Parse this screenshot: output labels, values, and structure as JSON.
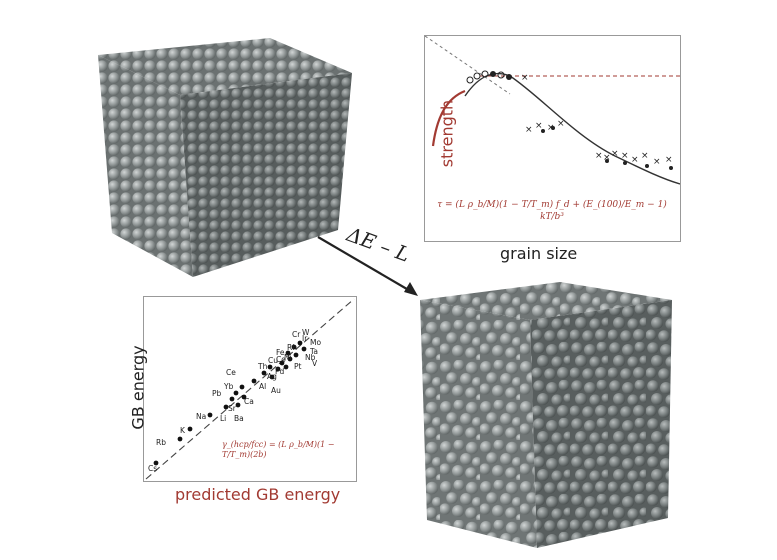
{
  "arrow_label": "ΔE – L",
  "strength_panel": {
    "ylabel": "strength",
    "xlabel": "grain size",
    "equation": "τ = (L ρ_b/M)(1 − T/T_m) f_d + (E_(100)/E_m − 1) kT/b³"
  },
  "gb_panel": {
    "ylabel": "GB energy",
    "xlabel": "predicted GB energy",
    "equation": "γ_(hcp/fcc) = (L ρ_b/M)(1 − T/T_m)(2b)",
    "element_labels": [
      "W",
      "Cr",
      "Ir",
      "Mo",
      "Ta",
      "Nb",
      "V",
      "Fe",
      "Rh",
      "Ni",
      "Co",
      "Pt",
      "Cu",
      "Pd",
      "Ag",
      "Th",
      "Al",
      "Au",
      "Ce",
      "Yb",
      "Pb",
      "Ca",
      "Sr",
      "Ba",
      "Li",
      "Na",
      "K",
      "Rb",
      "Cs"
    ]
  },
  "colors": {
    "accent": "#a23a32",
    "sphere": "#8a9090",
    "ink": "#222222"
  }
}
